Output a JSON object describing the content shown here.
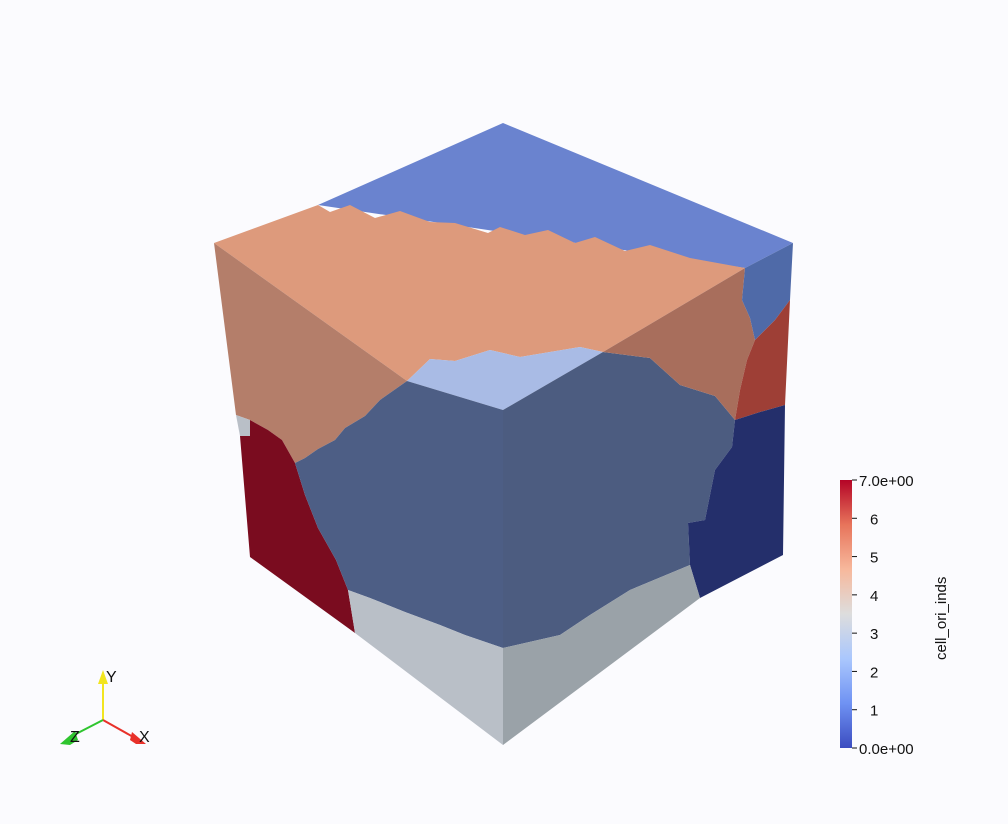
{
  "colorbar": {
    "title": "cell_ori_inds",
    "range": [
      0,
      7
    ],
    "max_label": "7.0e+00",
    "min_label": "0.0e+00",
    "tick_labels": [
      "6",
      "5",
      "4",
      "3",
      "2",
      "1"
    ],
    "colormap": [
      "#3b4cc0",
      "#6f92f3",
      "#aac7fd",
      "#dddddd",
      "#f7b89c",
      "#e7745b",
      "#b40426"
    ]
  },
  "axes_triad": {
    "x_label": "X",
    "y_label": "Y",
    "z_label": "Z",
    "x_color": "#e8312a",
    "y_color": "#f2e520",
    "z_color": "#2fc52f"
  },
  "regions": {
    "orange": "#dd9a7c",
    "blue_top": "#6a83cf",
    "light_blue": "#a9bbe5",
    "slate_left": "#4d5e85",
    "slate_right": "#4c5c80",
    "dark_red": "#7a0c1f",
    "brick_red": "#9e3f36",
    "navy": "#242f6b",
    "gray_left": "#b9bfc7",
    "gray_right": "#9aa2a8",
    "orange_side_left": "#b47e6a",
    "orange_side_right": "#a86e5c",
    "blue_side": "#4f6aa8"
  }
}
